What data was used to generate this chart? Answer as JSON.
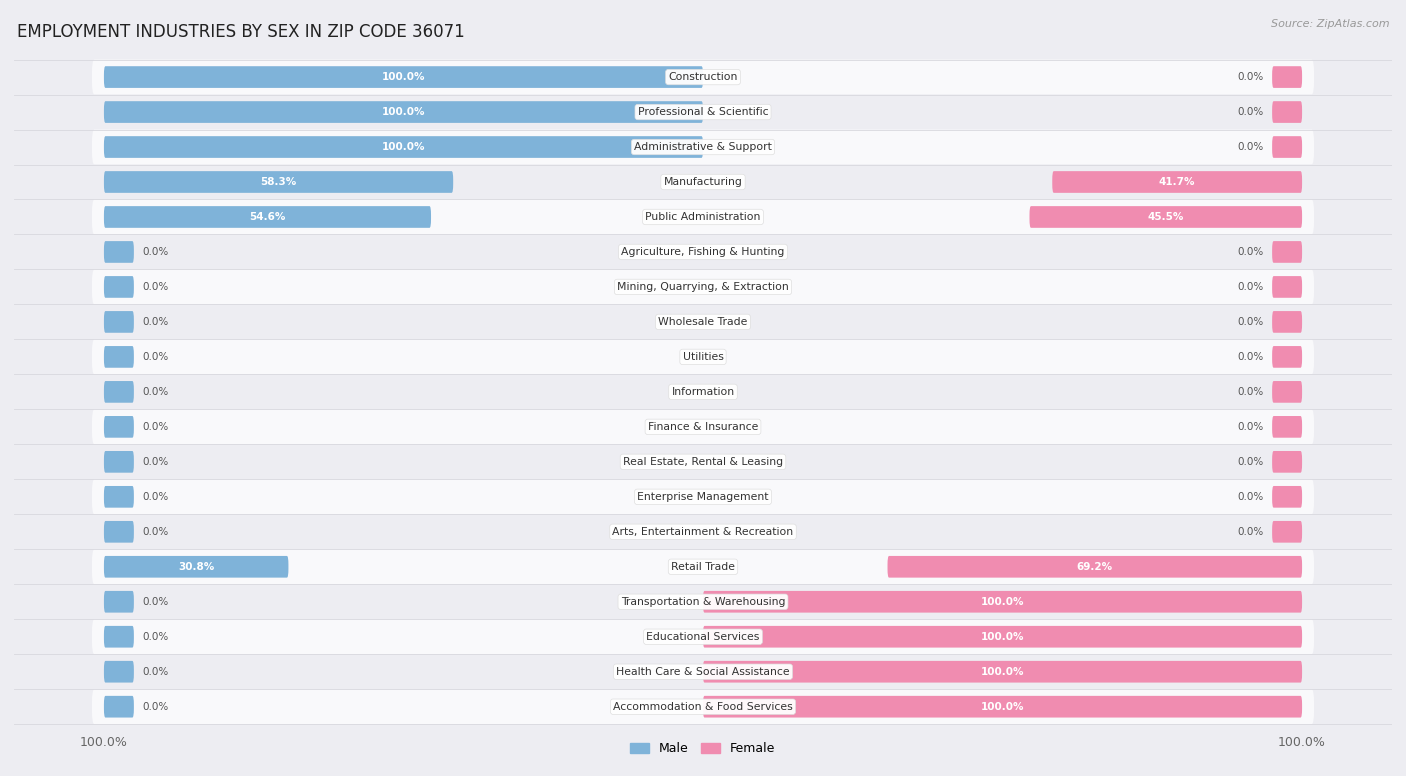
{
  "title": "EMPLOYMENT INDUSTRIES BY SEX IN ZIP CODE 36071",
  "source": "Source: ZipAtlas.com",
  "industries": [
    "Construction",
    "Professional & Scientific",
    "Administrative & Support",
    "Manufacturing",
    "Public Administration",
    "Agriculture, Fishing & Hunting",
    "Mining, Quarrying, & Extraction",
    "Wholesale Trade",
    "Utilities",
    "Information",
    "Finance & Insurance",
    "Real Estate, Rental & Leasing",
    "Enterprise Management",
    "Arts, Entertainment & Recreation",
    "Retail Trade",
    "Transportation & Warehousing",
    "Educational Services",
    "Health Care & Social Assistance",
    "Accommodation & Food Services"
  ],
  "male_pct": [
    100.0,
    100.0,
    100.0,
    58.3,
    54.6,
    0.0,
    0.0,
    0.0,
    0.0,
    0.0,
    0.0,
    0.0,
    0.0,
    0.0,
    30.8,
    0.0,
    0.0,
    0.0,
    0.0
  ],
  "female_pct": [
    0.0,
    0.0,
    0.0,
    41.7,
    45.5,
    0.0,
    0.0,
    0.0,
    0.0,
    0.0,
    0.0,
    0.0,
    0.0,
    0.0,
    69.2,
    100.0,
    100.0,
    100.0,
    100.0
  ],
  "male_color": "#7fb3d9",
  "female_color": "#f08cb0",
  "bg_color": "#ededf2",
  "row_bg_light": "#f9f9fb",
  "row_bg_dark": "#ededf2",
  "title_fontsize": 12,
  "bar_height": 0.62,
  "figsize": [
    14.06,
    7.76
  ],
  "stub_size": 5.0
}
